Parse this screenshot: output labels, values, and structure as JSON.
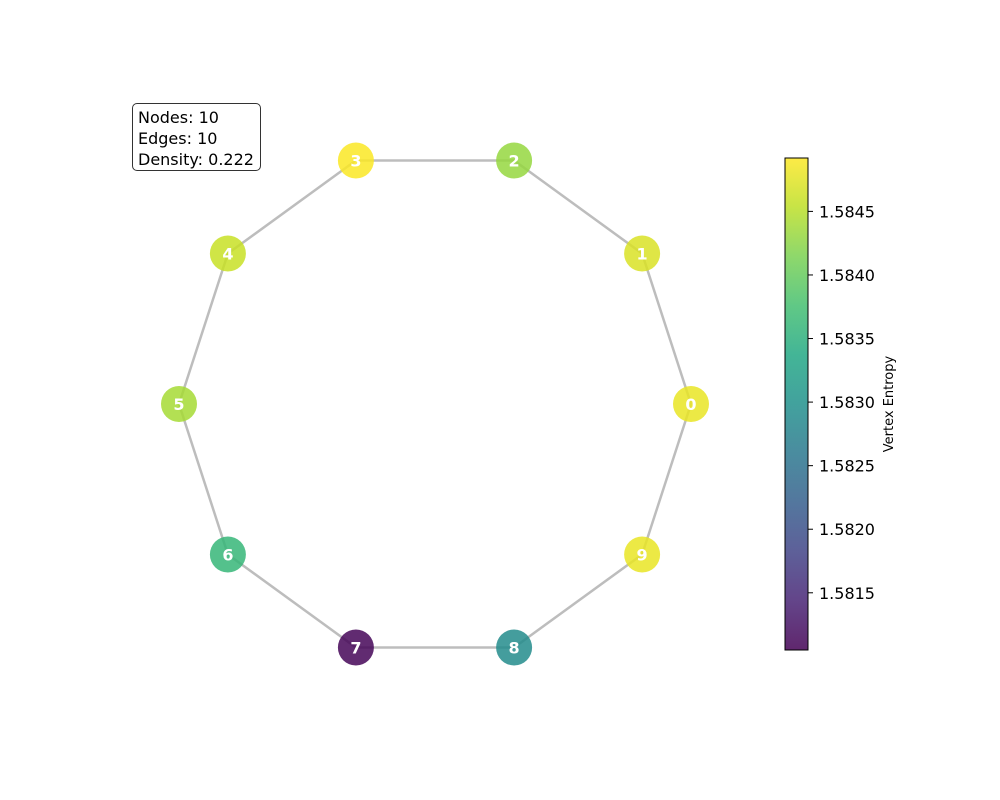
{
  "stats": {
    "nodes_label": "Nodes: 10",
    "edges_label": "Edges: 10",
    "density_label": "Density: 0.222"
  },
  "graph": {
    "layout": "circular",
    "node_order_ccw_from_right": [
      "0",
      "1",
      "2",
      "3",
      "4",
      "5",
      "6",
      "7",
      "8",
      "9"
    ],
    "nodes": [
      {
        "id": "0",
        "entropy": 1.5848
      },
      {
        "id": "1",
        "entropy": 1.5847
      },
      {
        "id": "2",
        "entropy": 1.5843
      },
      {
        "id": "3",
        "entropy": 1.5849
      },
      {
        "id": "4",
        "entropy": 1.5846
      },
      {
        "id": "5",
        "entropy": 1.5844
      },
      {
        "id": "6",
        "entropy": 1.5836
      },
      {
        "id": "7",
        "entropy": 1.5811
      },
      {
        "id": "8",
        "entropy": 1.5829
      },
      {
        "id": "9",
        "entropy": 1.5848
      }
    ],
    "edges": [
      [
        "0",
        "1"
      ],
      [
        "1",
        "2"
      ],
      [
        "2",
        "3"
      ],
      [
        "3",
        "4"
      ],
      [
        "4",
        "5"
      ],
      [
        "5",
        "6"
      ],
      [
        "6",
        "7"
      ],
      [
        "7",
        "8"
      ],
      [
        "8",
        "9"
      ],
      [
        "9",
        "0"
      ]
    ],
    "edge_color": "#bdbdbd",
    "label_color": "#ffffff"
  },
  "colorbar": {
    "label": "Vertex Entropy",
    "colormap": "viridis",
    "range": [
      1.58105,
      1.58492
    ],
    "ticks": [
      "1.5815",
      "1.5820",
      "1.5825",
      "1.5830",
      "1.5835",
      "1.5840",
      "1.5845"
    ]
  }
}
